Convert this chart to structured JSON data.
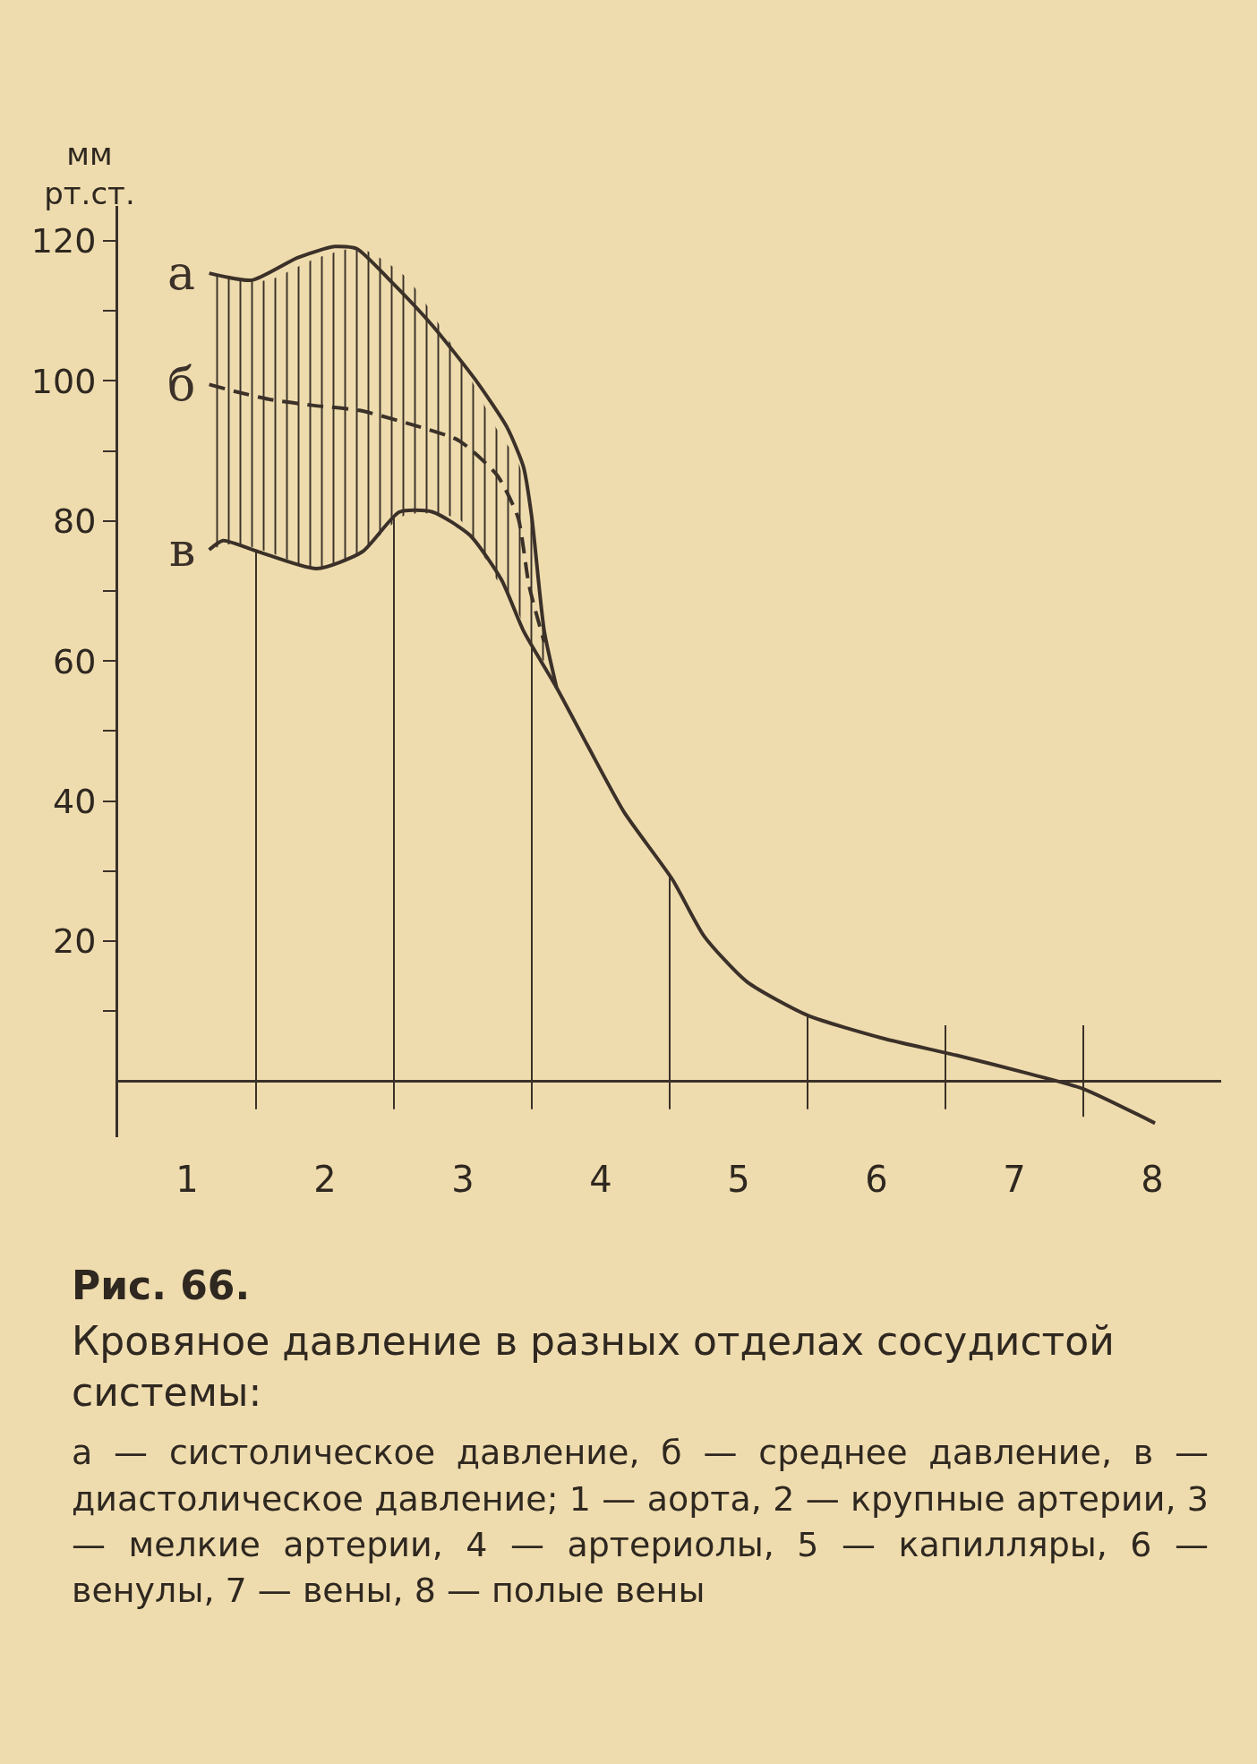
{
  "chart_data": {
    "type": "line",
    "title": "Рис. 66.",
    "subtitle": "Кровяное давление в разных отделах сосудистой системы:",
    "ylabel": "мм рт.ст.",
    "annotations": [
      "а — систолическое давление, б — среднее давление, в — диастолическое давление; 1 — аорта, 2 — крупные артерии, 3 — мелкие артерии, 4 — артериолы, 5 — капилляры, 6 — венулы, 7 — вены, 8 — полые вены"
    ],
    "xlim": [
      0.5,
      8.5
    ],
    "ylim": [
      -8,
      125
    ],
    "xticks": [
      1,
      2,
      3,
      4,
      5,
      6,
      7,
      8
    ],
    "yticks": [
      {
        "value": 10,
        "label": null
      },
      20,
      {
        "value": 30,
        "label": null
      },
      40,
      {
        "value": 50,
        "label": null
      },
      60,
      {
        "value": 70,
        "label": null
      },
      80,
      {
        "value": 90,
        "label": null
      },
      100,
      {
        "value": 110,
        "label": null
      },
      120
    ],
    "ref_lines": [
      {
        "axis": "x",
        "value": 1.5
      },
      {
        "axis": "x",
        "value": 2.5
      },
      {
        "axis": "x",
        "value": 3.5
      },
      {
        "axis": "x",
        "value": 4.5
      },
      {
        "axis": "x",
        "value": 5.5
      },
      {
        "axis": "x",
        "value": 6.5
      },
      {
        "axis": "x",
        "value": 7.5
      }
    ],
    "series": [
      {
        "name": "а",
        "color": "#3b3129",
        "line_style": "solid",
        "x": [
          1.16,
          1.47,
          1.8,
          2.07,
          2.23,
          2.47,
          2.78,
          3.09,
          3.32,
          3.44,
          3.5,
          3.59,
          3.68
        ],
        "values": [
          115.4,
          114.4,
          117.6,
          119.2,
          118.9,
          114.4,
          107.9,
          100.2,
          93.4,
          87.7,
          80.5,
          64.3,
          56.2
        ]
      },
      {
        "name": "б",
        "color": "#3b3129",
        "line_style": "dashed",
        "x": [
          1.16,
          1.35,
          1.59,
          1.92,
          2.25,
          2.59,
          2.97,
          3.25,
          3.4,
          3.48,
          3.59
        ],
        "values": [
          99.5,
          98.5,
          97.4,
          96.5,
          95.8,
          94,
          91.5,
          86.5,
          80.5,
          70.8,
          62.7
        ],
        "lower": [
          75.9,
          76.8,
          75.6,
          73.3,
          75.5,
          80.9,
          80.3,
          71.5,
          67,
          63,
          60
        ],
        "upper": [
          115.4,
          114.6,
          114.4,
          117.4,
          119,
          114.8,
          103.5,
          93,
          88.5,
          82,
          64
        ]
      },
      {
        "name": "в",
        "color": "#3b3129",
        "line_style": "solid",
        "x": [
          1.16,
          1.26,
          1.52,
          1.94,
          2.27,
          2.54,
          2.78,
          3.05,
          3.28,
          3.44,
          3.68,
          3.9,
          4.17,
          4.52,
          4.75,
          5.06,
          5.5,
          6.05,
          6.58,
          7.12,
          7.5,
          8.02
        ],
        "values": [
          75.9,
          77.2,
          75.6,
          73.2,
          75.6,
          81.3,
          81.3,
          78,
          71.6,
          64.3,
          56.2,
          48.1,
          38.4,
          28.8,
          20.7,
          14.2,
          9.4,
          6.1,
          3.7,
          1,
          -1.1,
          -6
        ]
      }
    ]
  }
}
